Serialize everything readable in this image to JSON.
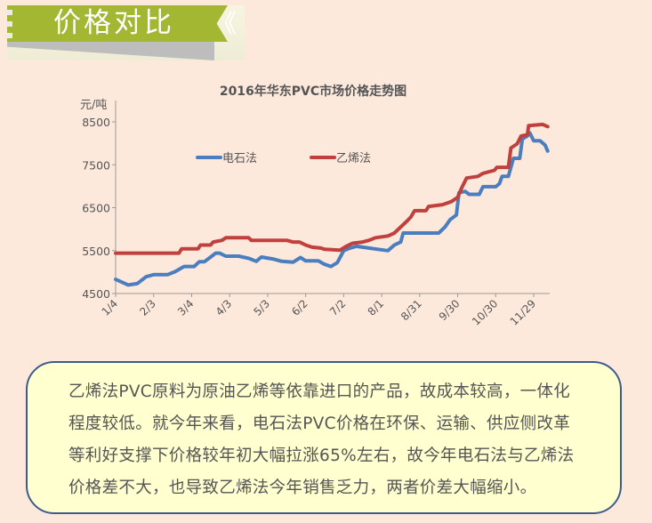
{
  "banner": {
    "title": "价格对比",
    "chevron": "《",
    "color": "#a3b732"
  },
  "chart_data": {
    "type": "line",
    "title": "2016年华东PVC市场价格走势图",
    "ylabel": "元/吨",
    "ylim": [
      4500,
      8500
    ],
    "yticks": [
      "4500",
      "5500",
      "6500",
      "7500",
      "8500"
    ],
    "xticks": [
      "1/4",
      "2/3",
      "3/4",
      "4/3",
      "5/3",
      "6/2",
      "7/2",
      "8/1",
      "8/31",
      "9/30",
      "10/30",
      "11/29"
    ],
    "year": 2016,
    "legend_placement": "top-left inside",
    "grid": false,
    "series": [
      {
        "name": "电石法",
        "color": "#4a7ebf",
        "points": [
          [
            "1/4",
            4830
          ],
          [
            "1/14",
            4700
          ],
          [
            "1/21",
            4730
          ],
          [
            "1/28",
            4890
          ],
          [
            "2/3",
            4940
          ],
          [
            "2/14",
            4940
          ],
          [
            "2/20",
            5010
          ],
          [
            "2/27",
            5130
          ],
          [
            "3/6",
            5130
          ],
          [
            "3/10",
            5240
          ],
          [
            "3/14",
            5240
          ],
          [
            "3/19",
            5350
          ],
          [
            "3/23",
            5440
          ],
          [
            "3/26",
            5440
          ],
          [
            "3/31",
            5370
          ],
          [
            "4/10",
            5370
          ],
          [
            "4/18",
            5320
          ],
          [
            "4/24",
            5250
          ],
          [
            "4/28",
            5350
          ],
          [
            "5/8",
            5300
          ],
          [
            "5/14",
            5250
          ],
          [
            "5/23",
            5230
          ],
          [
            "5/29",
            5340
          ],
          [
            "6/2",
            5260
          ],
          [
            "6/12",
            5260
          ],
          [
            "6/17",
            5180
          ],
          [
            "6/22",
            5130
          ],
          [
            "6/27",
            5220
          ],
          [
            "7/2",
            5500
          ],
          [
            "7/7",
            5560
          ],
          [
            "7/12",
            5600
          ],
          [
            "7/22",
            5560
          ],
          [
            "7/29",
            5530
          ],
          [
            "8/6",
            5500
          ],
          [
            "8/11",
            5630
          ],
          [
            "8/16",
            5700
          ],
          [
            "8/18",
            5910
          ],
          [
            "9/15",
            5910
          ],
          [
            "9/20",
            6050
          ],
          [
            "9/24",
            6220
          ],
          [
            "9/29",
            6330
          ],
          [
            "10/1",
            6850
          ],
          [
            "10/6",
            6880
          ],
          [
            "10/9",
            6810
          ],
          [
            "10/17",
            6810
          ],
          [
            "10/20",
            6990
          ],
          [
            "10/30",
            6990
          ],
          [
            "11/2",
            7060
          ],
          [
            "11/4",
            7230
          ],
          [
            "11/9",
            7230
          ],
          [
            "11/13",
            7650
          ],
          [
            "11/18",
            7650
          ],
          [
            "11/20",
            8100
          ],
          [
            "11/24",
            8170
          ],
          [
            "11/26",
            8240
          ],
          [
            "11/29",
            8060
          ],
          [
            "12/4",
            8060
          ],
          [
            "12/8",
            7960
          ],
          [
            "12/10",
            7820
          ]
        ]
      },
      {
        "name": "乙烯法",
        "color": "#c0403d",
        "points": [
          [
            "1/4",
            5440
          ],
          [
            "2/23",
            5440
          ],
          [
            "2/25",
            5540
          ],
          [
            "3/9",
            5540
          ],
          [
            "3/11",
            5630
          ],
          [
            "3/19",
            5630
          ],
          [
            "3/21",
            5700
          ],
          [
            "3/28",
            5740
          ],
          [
            "3/31",
            5800
          ],
          [
            "4/18",
            5800
          ],
          [
            "4/20",
            5740
          ],
          [
            "5/18",
            5740
          ],
          [
            "5/23",
            5700
          ],
          [
            "5/28",
            5700
          ],
          [
            "6/2",
            5630
          ],
          [
            "6/7",
            5580
          ],
          [
            "6/14",
            5560
          ],
          [
            "6/17",
            5530
          ],
          [
            "6/29",
            5510
          ],
          [
            "7/4",
            5600
          ],
          [
            "7/9",
            5670
          ],
          [
            "7/17",
            5700
          ],
          [
            "7/22",
            5740
          ],
          [
            "7/27",
            5800
          ],
          [
            "8/6",
            5840
          ],
          [
            "8/11",
            5910
          ],
          [
            "8/16",
            6050
          ],
          [
            "8/21",
            6190
          ],
          [
            "8/24",
            6280
          ],
          [
            "8/27",
            6430
          ],
          [
            "9/5",
            6430
          ],
          [
            "9/7",
            6530
          ],
          [
            "9/18",
            6570
          ],
          [
            "9/25",
            6640
          ],
          [
            "9/30",
            6740
          ],
          [
            "10/3",
            6950
          ],
          [
            "10/7",
            7190
          ],
          [
            "10/16",
            7230
          ],
          [
            "10/20",
            7300
          ],
          [
            "10/29",
            7370
          ],
          [
            "10/31",
            7440
          ],
          [
            "11/9",
            7440
          ],
          [
            "11/11",
            7890
          ],
          [
            "11/16",
            7990
          ],
          [
            "11/19",
            8170
          ],
          [
            "11/24",
            8200
          ],
          [
            "11/25",
            8410
          ],
          [
            "12/6",
            8440
          ],
          [
            "12/10",
            8390
          ]
        ]
      }
    ]
  },
  "note": {
    "lines": [
      "乙烯法PVC原料为原油乙烯等依靠进口的产品，故成本较高，一体化",
      "程度较低。就今年来看，电石法PVC价格在环保、运输、供应侧改革",
      "等利好支撑下价格较年初大幅拉涨65%左右，故今年电石法与乙烯法",
      "价格差不大，也导致乙烯法今年销售乏力，两者价差大幅缩小。"
    ],
    "border_color": "#3d5b8c",
    "fill_color": "#ffffcf"
  }
}
